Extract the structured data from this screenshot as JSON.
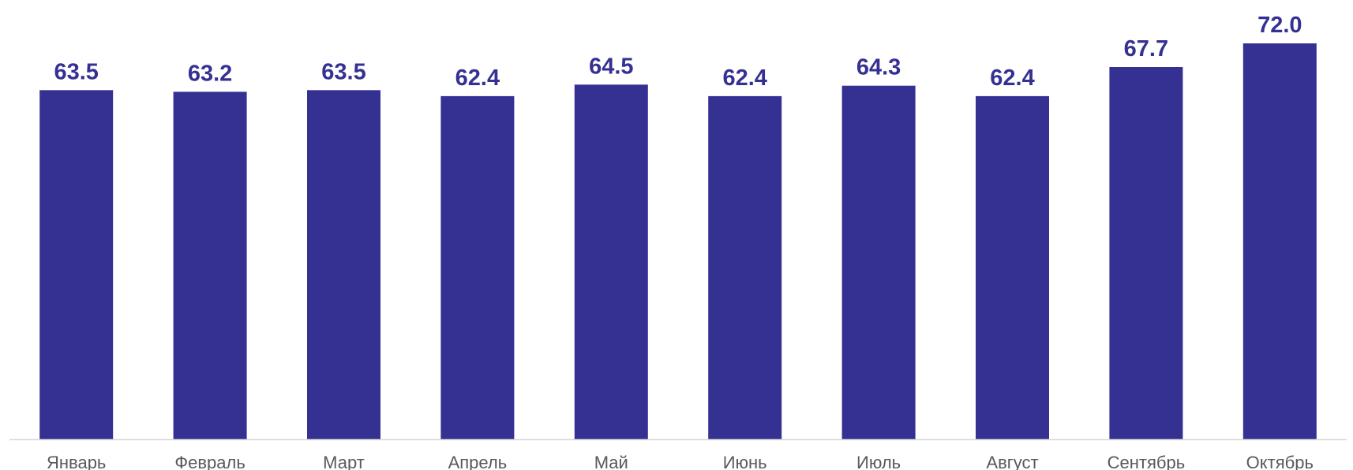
{
  "chart_data": {
    "type": "bar",
    "categories": [
      "Январь",
      "Февраль",
      "Март",
      "Апрель",
      "Май",
      "Июнь",
      "Июль",
      "Август",
      "Сентябрь",
      "Октябрь"
    ],
    "values": [
      63.5,
      63.2,
      63.5,
      62.4,
      64.5,
      62.4,
      64.3,
      62.4,
      67.7,
      72.0
    ],
    "value_labels": [
      "63.5",
      "63.2",
      "63.5",
      "62.4",
      "64.5",
      "62.4",
      "64.3",
      "62.4",
      "67.7",
      "72.0"
    ],
    "title": "",
    "xlabel": "",
    "ylabel": "",
    "ylim": [
      0,
      72.0
    ],
    "grid": false,
    "legend": "none",
    "colors": {
      "bar": "#353193",
      "value_label": "#353193",
      "tick_label": "#595959",
      "axis_line": "#d9d9d9"
    }
  }
}
